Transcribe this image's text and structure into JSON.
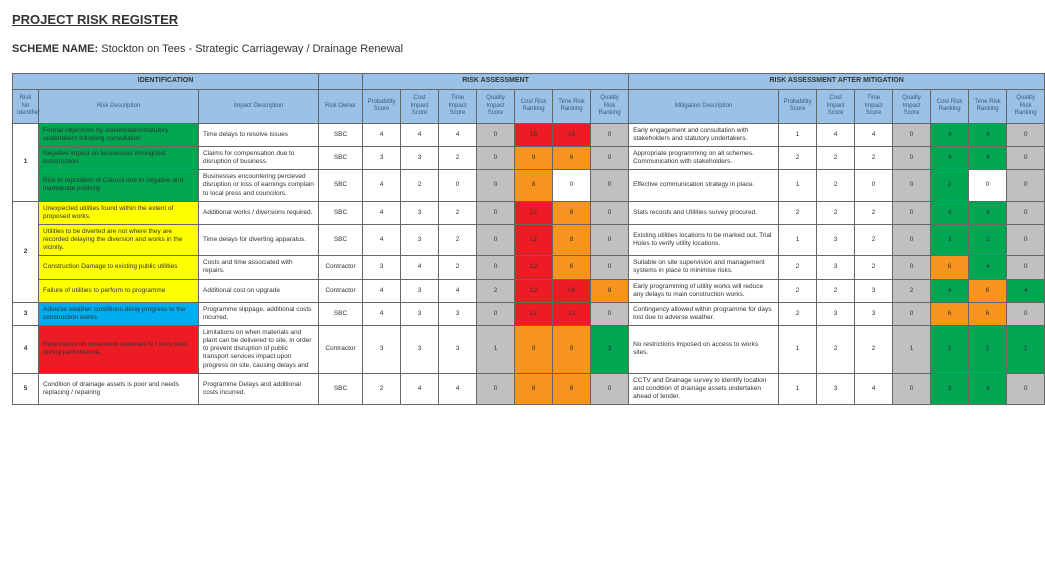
{
  "page": {
    "title": "PROJECT RISK REGISTER",
    "scheme_label": "SCHEME NAME:",
    "scheme_name": "Stockton on Tees - Strategic Carriageway / Drainage Renewal"
  },
  "sections": {
    "ident": "IDENTIFICATION",
    "assess": "RISK ASSESSMENT",
    "after": "RISK ASSESSMENT AFTER MITIGATION"
  },
  "cols": {
    "risk_no": "Risk No Identifier",
    "risk_desc": "Risk Description",
    "imp_desc": "Impact Description",
    "owner": "Risk Owner",
    "prob": "Probability Score",
    "cost": "Cost Impact Score",
    "time": "Time Impact Score",
    "qual": "Quality Impact Score",
    "cost_r": "Cost Risk Ranking",
    "time_r": "Time Risk Ranking",
    "qual_r": "Quality Risk Ranking",
    "mitig": "Mitigation Description",
    "prob2": "Probability Score",
    "cost2": "Cost Impact Score",
    "time2": "Time Impact Score",
    "qual2": "Quality Impact Score",
    "cost_r2": "Cost Risk Ranking",
    "time_r2": "Time Risk Ranking",
    "qual_r2": "Quality Risk Ranking"
  },
  "colors": {
    "grey": "#c0c0c0",
    "green": "#00a651",
    "yellow": "#ffff00",
    "amber": "#f7941d",
    "red": "#ed1c24",
    "blue": "#00aeef",
    "white": "#ffffff"
  },
  "groups": [
    {
      "no": "1",
      "rows": [
        0,
        1,
        2
      ]
    },
    {
      "no": "2",
      "rows": [
        3,
        4,
        5,
        6
      ]
    },
    {
      "no": "3",
      "rows": [
        7
      ]
    },
    {
      "no": "4",
      "rows": [
        8
      ]
    },
    {
      "no": "5",
      "rows": [
        9
      ]
    }
  ],
  "rows": [
    {
      "desc": "Formal objections by stakeholders/statutory undertakers following consultation",
      "desc_bg": "green",
      "imp": "Time delays to resolve issues",
      "owner": "SBC",
      "p": [
        "4",
        "4",
        "4",
        "0"
      ],
      "r": [
        "16",
        "16",
        "0"
      ],
      "r_bg": [
        "red",
        "red",
        "grey"
      ],
      "mitig": "Early engagement and consultation with stakeholders and statutory undertakers.",
      "p2": [
        "1",
        "4",
        "4",
        "0"
      ],
      "r2": [
        "4",
        "4",
        "0"
      ],
      "r2_bg": [
        "green",
        "green",
        "grey"
      ]
    },
    {
      "desc": "Negative impact on businesses throughout construction.",
      "desc_bg": "green",
      "imp": "Claims for compensation due to disruption of business.",
      "owner": "SBC",
      "p": [
        "3",
        "3",
        "2",
        "0"
      ],
      "r": [
        "9",
        "6",
        "0"
      ],
      "r_bg": [
        "amber",
        "amber",
        "grey"
      ],
      "mitig": "Appropriate programming on all schemes. Communication with stakeholders.",
      "p2": [
        "2",
        "2",
        "2",
        "0"
      ],
      "r2": [
        "4",
        "4",
        "0"
      ],
      "r2_bg": [
        "green",
        "green",
        "grey"
      ]
    },
    {
      "desc": "Risk to reputation of Council due to negative and inadequate publicity",
      "desc_bg": "green",
      "imp": "Businesses encountering percieved disruption or loss of earnings complain to local press and councilors.",
      "owner": "SBC",
      "p": [
        "4",
        "2",
        "0",
        "0"
      ],
      "r": [
        "8",
        "0",
        "0"
      ],
      "r_bg": [
        "amber",
        "white",
        "grey"
      ],
      "mitig": "Effective communication strategy in place.",
      "p2": [
        "1",
        "2",
        "0",
        "0"
      ],
      "r2": [
        "2",
        "0",
        "0"
      ],
      "r2_bg": [
        "green",
        "white",
        "grey"
      ]
    },
    {
      "desc": "Unexpected utilities found within the extent of proposed works.",
      "desc_bg": "yellow",
      "imp": "Additional works / diversions required.",
      "owner": "SBC",
      "p": [
        "4",
        "3",
        "2",
        "0"
      ],
      "r": [
        "12",
        "8",
        "0"
      ],
      "r_bg": [
        "red",
        "amber",
        "grey"
      ],
      "mitig": "Stats records and Utilities survey procured.",
      "p2": [
        "2",
        "2",
        "2",
        "0"
      ],
      "r2": [
        "4",
        "4",
        "0"
      ],
      "r2_bg": [
        "green",
        "green",
        "grey"
      ]
    },
    {
      "desc": "Utilities to be diverted are not where they are recorded delaying the diversion and works in the vicinity.",
      "desc_bg": "yellow",
      "imp": "Time delays for diverting apparatus.",
      "owner": "SBC",
      "p": [
        "4",
        "3",
        "2",
        "0"
      ],
      "r": [
        "12",
        "8",
        "0"
      ],
      "r_bg": [
        "red",
        "amber",
        "grey"
      ],
      "mitig": "Existing utilities locations to be marked out. Trial Holes to verify utility locations.",
      "p2": [
        "1",
        "3",
        "2",
        "0"
      ],
      "r2": [
        "3",
        "2",
        "0"
      ],
      "r2_bg": [
        "green",
        "green",
        "grey"
      ]
    },
    {
      "desc": "Construction Damage to existing public utilities",
      "desc_bg": "yellow",
      "imp": "Costs and time associated with repairs.",
      "owner": "Contractor",
      "p": [
        "3",
        "4",
        "2",
        "0"
      ],
      "r": [
        "12",
        "6",
        "0"
      ],
      "r_bg": [
        "red",
        "amber",
        "grey"
      ],
      "mitig": "Suitable on site supervision and management systems in place to minimise risks.",
      "p2": [
        "2",
        "3",
        "2",
        "0"
      ],
      "r2": [
        "6",
        "4",
        "0"
      ],
      "r2_bg": [
        "amber",
        "green",
        "grey"
      ]
    },
    {
      "desc": "Failure of utilities to perform to programme",
      "desc_bg": "yellow",
      "imp": "Additional cost on upgrade",
      "owner": "Contractor",
      "p": [
        "4",
        "3",
        "4",
        "2"
      ],
      "r": [
        "12",
        "16",
        "8"
      ],
      "r_bg": [
        "red",
        "red",
        "amber"
      ],
      "mitig": "Early programming of utility works will reduce any delays to main construction works.",
      "p2": [
        "2",
        "2",
        "3",
        "2"
      ],
      "r2": [
        "4",
        "6",
        "4"
      ],
      "r2_bg": [
        "green",
        "amber",
        "green"
      ]
    },
    {
      "desc": "Adverse weather conditions delay progress to the construction works.",
      "desc_bg": "blue",
      "imp": "Programme slippage, additional costs incurred.",
      "owner": "SBC",
      "p": [
        "4",
        "3",
        "3",
        "0"
      ],
      "r": [
        "12",
        "12",
        "0"
      ],
      "r_bg": [
        "red",
        "red",
        "grey"
      ],
      "mitig": "Contingency allowed within programme for days lost due to adverse weather.",
      "p2": [
        "2",
        "3",
        "3",
        "0"
      ],
      "r2": [
        "6",
        "6",
        "0"
      ],
      "r2_bg": [
        "amber",
        "amber",
        "grey"
      ]
    },
    {
      "desc": "Restrictions on movement materials to / from sites during performance.",
      "desc_bg": "red",
      "imp": "Limitations on when materials and plant can be delivered to site, in order to prevent disruption of public transport services impact upon progress on site, causing delays and",
      "owner": "Contractor",
      "p": [
        "3",
        "3",
        "3",
        "1"
      ],
      "r": [
        "9",
        "9",
        "3"
      ],
      "r_bg": [
        "amber",
        "amber",
        "green"
      ],
      "mitig": "No restrictions imposed on access to works sites.",
      "p2": [
        "1",
        "2",
        "2",
        "1"
      ],
      "r2": [
        "2",
        "2",
        "1"
      ],
      "r2_bg": [
        "green",
        "green",
        "green"
      ]
    },
    {
      "desc": "Condition of drainage assets is poor and needs replacing / repairing",
      "desc_bg": "white",
      "imp": "Programme Delays and additional costs incurred.",
      "owner": "SBC",
      "p": [
        "2",
        "4",
        "4",
        "0"
      ],
      "r": [
        "8",
        "8",
        "0"
      ],
      "r_bg": [
        "amber",
        "amber",
        "grey"
      ],
      "mitig": "CCTV and Drainage survey to identify location and condition of drainage assets undertaken ahead of tender.",
      "p2": [
        "1",
        "3",
        "4",
        "0"
      ],
      "r2": [
        "3",
        "4",
        "0"
      ],
      "r2_bg": [
        "green",
        "green",
        "grey"
      ]
    }
  ]
}
